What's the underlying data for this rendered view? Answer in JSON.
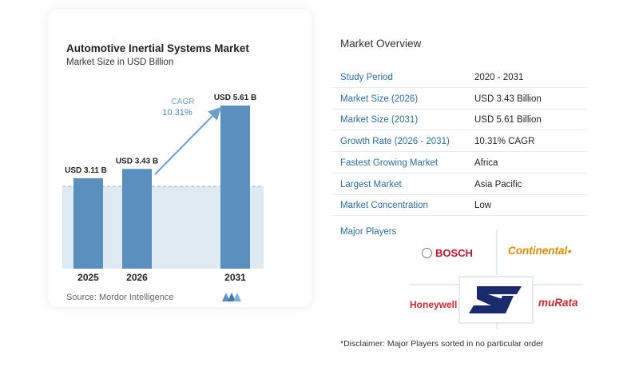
{
  "chart_data": {
    "type": "bar",
    "title": "Automotive Inertial Systems Market",
    "subtitle": "Market Size in USD Billion",
    "categories": [
      "2025",
      "2026",
      "2031"
    ],
    "values": [
      3.11,
      3.43,
      5.61
    ],
    "value_labels": [
      "USD 3.11 B",
      "USD 3.43 B",
      "USD 5.61 B"
    ],
    "ylim": [
      0,
      5.61
    ],
    "cagr_label": "CAGR",
    "cagr_value": "10.31%",
    "bar_color": "#5b8fbd",
    "source": "Source:  Mordor Intelligence"
  },
  "overview": {
    "title": "Market Overview",
    "rows": [
      {
        "key": "Study Period",
        "value": "2020 - 2031"
      },
      {
        "key": "Market Size (2026)",
        "value": "USD 3.43 Billion"
      },
      {
        "key": "Market Size (2031)",
        "value": "USD 5.61 Billion"
      },
      {
        "key": "Growth Rate (2026 - 2031)",
        "value": "10.31% CAGR"
      },
      {
        "key": "Fastest Growing Market",
        "value": "Africa"
      },
      {
        "key": "Largest Market",
        "value": "Asia Pacific"
      },
      {
        "key": "Market Concentration",
        "value": "Low"
      }
    ]
  },
  "players": {
    "title": "Major Players",
    "logos": [
      "BOSCH",
      "Continental",
      "Honeywell",
      "ST",
      "muRata"
    ]
  },
  "disclaimer": "*Disclaimer: Major Players sorted in no particular order"
}
